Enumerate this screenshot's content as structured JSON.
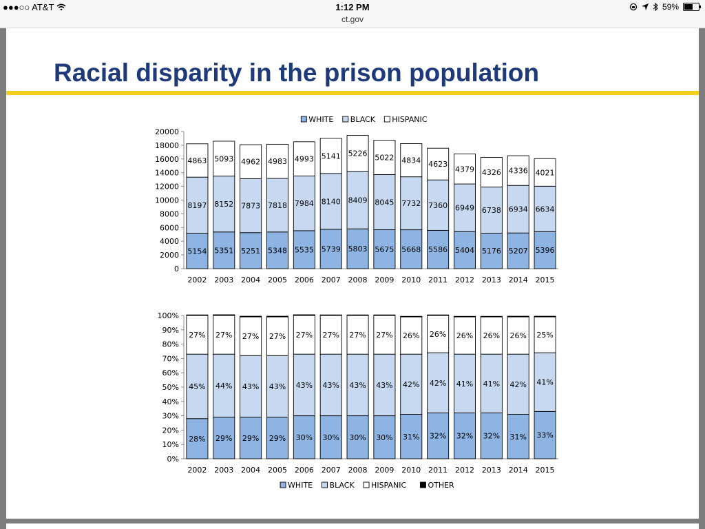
{
  "status_bar": {
    "carrier": "●●●○○ AT&T",
    "time": "1:12 PM",
    "url": "ct.gov",
    "battery_text": "59%",
    "battery_level": 0.59
  },
  "slide": {
    "title": "Racial disparity in the prison population"
  },
  "chart_data": [
    {
      "type": "bar",
      "stacked": true,
      "categories": [
        "2002",
        "2003",
        "2004",
        "2005",
        "2006",
        "2007",
        "2008",
        "2009",
        "2010",
        "2011",
        "2012",
        "2013",
        "2014",
        "2015"
      ],
      "series": [
        {
          "name": "WHITE",
          "color": "#8eb4e3",
          "values": [
            5154,
            5351,
            5251,
            5348,
            5535,
            5739,
            5803,
            5675,
            5668,
            5586,
            5404,
            5176,
            5207,
            5396
          ]
        },
        {
          "name": "BLACK",
          "color": "#c6d9f1",
          "values": [
            8197,
            8152,
            7873,
            7818,
            7984,
            8140,
            8409,
            8045,
            7732,
            7360,
            6949,
            6738,
            6934,
            6634
          ]
        },
        {
          "name": "HISPANIC",
          "color": "#ffffff",
          "values": [
            4863,
            5093,
            4962,
            4983,
            4993,
            5141,
            5226,
            5022,
            4834,
            4623,
            4379,
            4326,
            4336,
            4021
          ]
        }
      ],
      "ylim": [
        0,
        20000
      ],
      "yticks": [
        "0",
        "2000",
        "4000",
        "6000",
        "8000",
        "10000",
        "12000",
        "14000",
        "16000",
        "18000",
        "20000"
      ],
      "legend": "top"
    },
    {
      "type": "bar",
      "stacked": true,
      "percent": true,
      "categories": [
        "2002",
        "2003",
        "2004",
        "2005",
        "2006",
        "2007",
        "2008",
        "2009",
        "2010",
        "2011",
        "2012",
        "2013",
        "2014",
        "2015"
      ],
      "series": [
        {
          "name": "WHITE",
          "color": "#8eb4e3",
          "values": [
            28,
            29,
            29,
            29,
            30,
            30,
            30,
            30,
            31,
            32,
            32,
            32,
            31,
            33
          ],
          "labels": [
            "28%",
            "29%",
            "29%",
            "29%",
            "30%",
            "30%",
            "30%",
            "30%",
            "31%",
            "32%",
            "32%",
            "32%",
            "31%",
            "33%"
          ]
        },
        {
          "name": "BLACK",
          "color": "#c6d9f1",
          "values": [
            45,
            44,
            43,
            43,
            43,
            43,
            43,
            43,
            42,
            42,
            41,
            41,
            42,
            41
          ],
          "labels": [
            "45%",
            "44%",
            "43%",
            "43%",
            "43%",
            "43%",
            "43%",
            "43%",
            "42%",
            "42%",
            "41%",
            "41%",
            "42%",
            "41%"
          ]
        },
        {
          "name": "HISPANIC",
          "color": "#ffffff",
          "values": [
            27,
            27,
            27,
            27,
            27,
            27,
            27,
            27,
            26,
            26,
            26,
            26,
            26,
            25
          ],
          "labels": [
            "27%",
            "27%",
            "27%",
            "27%",
            "27%",
            "27%",
            "27%",
            "27%",
            "26%",
            "26%",
            "26%",
            "26%",
            "26%",
            "25%"
          ]
        },
        {
          "name": "OTHER",
          "color": "#000000",
          "values": [
            0.4,
            0.5,
            0.5,
            0.5,
            0.5,
            0.4,
            0.4,
            0.4,
            0.4,
            0.4,
            0.4,
            0.4,
            0.5,
            0.5
          ]
        }
      ],
      "ylim": [
        0,
        100
      ],
      "yticks": [
        "0%",
        "10%",
        "20%",
        "30%",
        "40%",
        "50%",
        "60%",
        "70%",
        "80%",
        "90%",
        "100%"
      ],
      "legend": "bottom"
    }
  ]
}
